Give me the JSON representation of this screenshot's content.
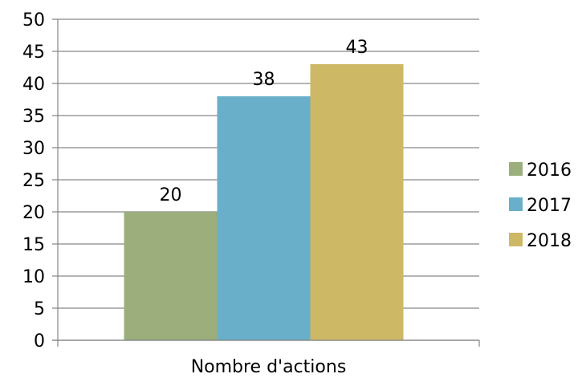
{
  "chart_data": {
    "type": "bar",
    "categories": [
      "Nombre d'actions"
    ],
    "series": [
      {
        "name": "2016",
        "values": [
          20
        ],
        "color": "#9bae7c"
      },
      {
        "name": "2017",
        "values": [
          38
        ],
        "color": "#6aafc9"
      },
      {
        "name": "2018",
        "values": [
          43
        ],
        "color": "#cdb865"
      }
    ],
    "title": "",
    "xlabel": "",
    "ylabel": "",
    "ylim": [
      0,
      50
    ],
    "yticks": [
      "0",
      "5",
      "10",
      "15",
      "20",
      "25",
      "30",
      "35",
      "40",
      "45",
      "50"
    ],
    "data_labels": [
      "20",
      "38",
      "43"
    ],
    "grid": true,
    "gridline_color": "#868686",
    "legend_position": "right"
  }
}
